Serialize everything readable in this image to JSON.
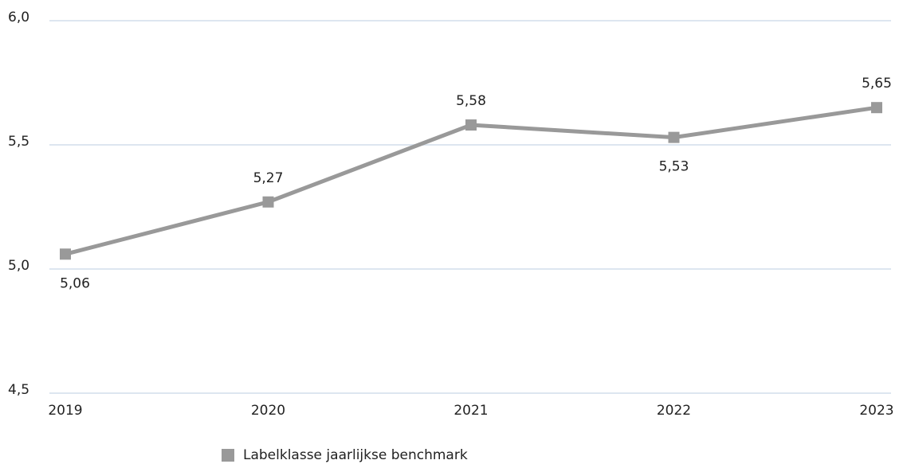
{
  "chart_data": {
    "type": "line",
    "categories": [
      "2019",
      "2020",
      "2021",
      "2022",
      "2023"
    ],
    "series": [
      {
        "name": "Labelklasse jaarlijkse benchmark",
        "color": "#999999",
        "values": [
          5.06,
          5.27,
          5.58,
          5.53,
          5.65
        ],
        "value_labels": [
          "5,06",
          "5,27",
          "5,58",
          "5,53",
          "5,65"
        ]
      }
    ],
    "ylim": [
      4.5,
      6.0
    ],
    "yticks": [
      {
        "value": 4.5,
        "label": "4,5"
      },
      {
        "value": 5.0,
        "label": "5,0"
      },
      {
        "value": 5.5,
        "label": "5,5"
      },
      {
        "value": 6.0,
        "label": "6,0"
      }
    ],
    "grid": true,
    "legend": "bottom"
  }
}
